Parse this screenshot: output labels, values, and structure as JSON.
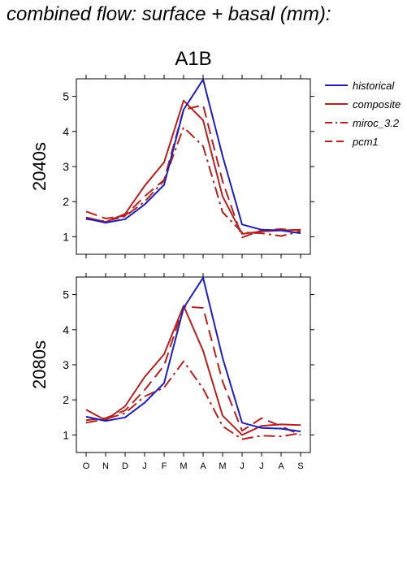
{
  "page_title": "combined flow: surface + basal (mm):",
  "chart_data": {
    "type": "line",
    "scenario": "A1B",
    "categories": [
      "O",
      "N",
      "D",
      "J",
      "F",
      "M",
      "A",
      "M",
      "J",
      "J",
      "A",
      "S"
    ],
    "ylim": [
      0.5,
      5.5
    ],
    "yticks": [
      1,
      2,
      3,
      4,
      5
    ],
    "grid": false,
    "legend_position": "right",
    "legend": [
      {
        "name": "historical",
        "color": "#1f1fb4",
        "dash": "solid"
      },
      {
        "name": "composite",
        "color": "#b22222",
        "dash": "solid"
      },
      {
        "name": "miroc_3.2",
        "color": "#b22222",
        "dash": "dashdot"
      },
      {
        "name": "pcm1",
        "color": "#b22222",
        "dash": "dashed"
      }
    ],
    "panels": [
      {
        "label": "2040s",
        "series": [
          {
            "name": "historical",
            "values": [
              1.52,
              1.4,
              1.5,
              1.92,
              2.48,
              4.62,
              5.48,
              3.3,
              1.35,
              1.2,
              1.18,
              1.1
            ]
          },
          {
            "name": "composite",
            "values": [
              1.55,
              1.42,
              1.65,
              2.45,
              3.12,
              4.88,
              4.32,
              2.15,
              1.08,
              1.15,
              1.18,
              1.2
            ]
          },
          {
            "name": "miroc_3.2",
            "values": [
              1.5,
              1.44,
              1.58,
              2.0,
              2.6,
              4.12,
              3.58,
              1.7,
              1.12,
              1.1,
              1.02,
              1.15
            ]
          },
          {
            "name": "pcm1",
            "values": [
              1.72,
              1.52,
              1.6,
              2.15,
              2.62,
              4.62,
              4.75,
              2.58,
              0.98,
              1.18,
              1.22,
              1.18
            ]
          }
        ]
      },
      {
        "label": "2080s",
        "series": [
          {
            "name": "historical",
            "values": [
              1.52,
              1.4,
              1.5,
              1.92,
              2.48,
              4.62,
              5.48,
              3.2,
              1.35,
              1.2,
              1.18,
              1.1
            ]
          },
          {
            "name": "composite",
            "values": [
              1.72,
              1.42,
              1.82,
              2.65,
              3.3,
              4.68,
              3.4,
              1.55,
              1.0,
              1.26,
              1.3,
              1.28
            ]
          },
          {
            "name": "miroc_3.2",
            "values": [
              1.35,
              1.45,
              1.62,
              2.1,
              2.35,
              3.1,
              2.32,
              1.25,
              0.88,
              0.98,
              0.96,
              1.05
            ]
          },
          {
            "name": "pcm1",
            "values": [
              1.42,
              1.48,
              1.7,
              2.28,
              2.98,
              4.66,
              4.62,
              2.52,
              1.12,
              1.48,
              1.25,
              1.0
            ]
          }
        ]
      }
    ]
  }
}
